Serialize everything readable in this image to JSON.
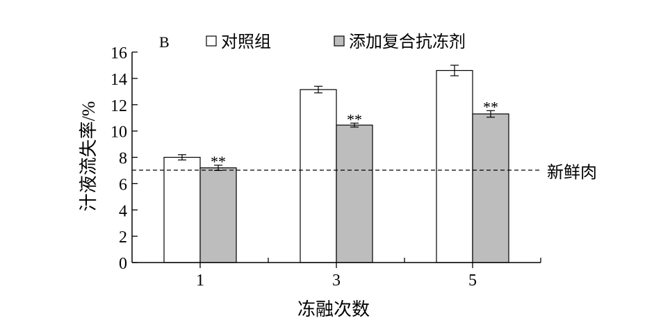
{
  "chart_data": {
    "type": "bar",
    "panel_label": "B",
    "xlabel": "冻融次数",
    "ylabel": "汁液流失率/%",
    "ylim": [
      0,
      16
    ],
    "yticks": [
      "0",
      "2",
      "4",
      "6",
      "8",
      "10",
      "12",
      "14",
      "16"
    ],
    "categories": [
      "1",
      "3",
      "5"
    ],
    "series": [
      {
        "name": "对照组",
        "values": [
          8.0,
          13.15,
          14.6
        ],
        "errors": [
          0.2,
          0.25,
          0.4
        ],
        "color": "#ffffff",
        "markers": [
          "",
          "",
          ""
        ]
      },
      {
        "name": "添加复合抗冻剂",
        "values": [
          7.2,
          10.45,
          11.3
        ],
        "errors": [
          0.2,
          0.15,
          0.25
        ],
        "color": "#bdbdbd",
        "markers": [
          "**",
          "**",
          "**"
        ]
      }
    ],
    "reference_line": {
      "value": 7.0,
      "label": "新鲜肉",
      "style": "dashed"
    },
    "grid": false,
    "legend_position": "top"
  }
}
